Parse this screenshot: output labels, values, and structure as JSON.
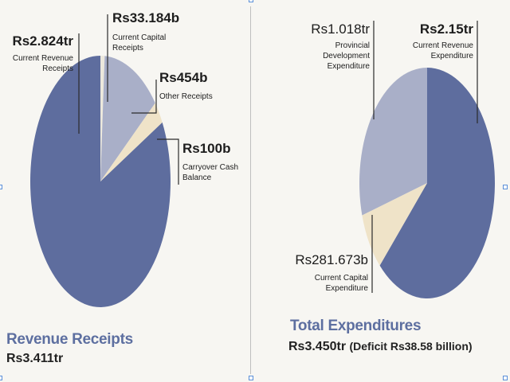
{
  "colors": {
    "dark": "#5e6d9e",
    "medium": "#a9afc8",
    "light": "#efe3c8",
    "pale": "#ece8dc",
    "line": "#2b2b2b"
  },
  "chart_data": [
    {
      "type": "pie",
      "title": "Revenue Receipts",
      "subtitle": "Rs3.411tr",
      "slices": [
        {
          "name": "Current Revenue Receipts",
          "value_label": "Rs2.824tr",
          "value": 2824,
          "color": "dark"
        },
        {
          "name": "Current Capital Receipts",
          "value_label": "Rs33.184b",
          "value": 33.184,
          "color": "pale"
        },
        {
          "name": "Other Receipts",
          "value_label": "Rs454b",
          "value": 454,
          "color": "medium"
        },
        {
          "name": "Carryover Cash Balance",
          "value_label": "Rs100b",
          "value": 100,
          "color": "light"
        }
      ]
    },
    {
      "type": "pie",
      "title": "Total Expenditures",
      "subtitle": "Rs3.450tr",
      "subtitle_note": "(Deficit Rs38.58 billion)",
      "slices": [
        {
          "name": "Current Revenue Expenditure",
          "value_label": "Rs2.15tr",
          "value": 2150,
          "color": "dark"
        },
        {
          "name": "Current Capital Expenditure",
          "value_label": "Rs281.673b",
          "value": 281.673,
          "color": "light"
        },
        {
          "name": "Provincial Development Expenditure",
          "value_label": "Rs1.018tr",
          "value": 1018,
          "color": "medium"
        }
      ]
    }
  ]
}
